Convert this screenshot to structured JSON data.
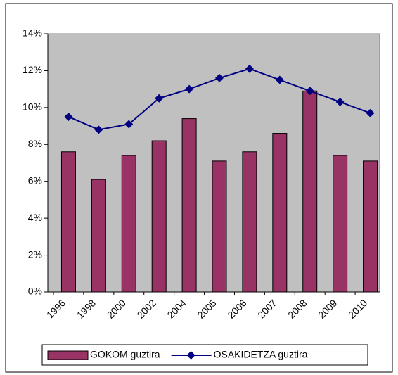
{
  "chart_data": {
    "type": "bar_line",
    "categories": [
      "1996",
      "1998",
      "2000",
      "2002",
      "2004",
      "2005",
      "2006",
      "2007",
      "2008",
      "2009",
      "2010"
    ],
    "series": [
      {
        "name": "GOKOM guztira",
        "type": "bar",
        "color": "#993366",
        "values": [
          7.6,
          6.1,
          7.4,
          8.2,
          9.4,
          7.1,
          7.6,
          8.6,
          10.9,
          7.4,
          7.1
        ]
      },
      {
        "name": "OSAKIDETZA guztira",
        "type": "line",
        "color": "#000080",
        "values": [
          9.5,
          8.8,
          9.1,
          10.5,
          11.0,
          11.6,
          12.1,
          11.5,
          10.9,
          10.3,
          9.7
        ]
      }
    ],
    "ylim": [
      0,
      14
    ],
    "yticks": [
      {
        "value": 0,
        "label": "0%"
      },
      {
        "value": 2,
        "label": "2%"
      },
      {
        "value": 4,
        "label": "4%"
      },
      {
        "value": 6,
        "label": "6%"
      },
      {
        "value": 8,
        "label": "8%"
      },
      {
        "value": 10,
        "label": "10%"
      },
      {
        "value": 12,
        "label": "12%"
      },
      {
        "value": 14,
        "label": "14%"
      }
    ],
    "legend": "bottom"
  }
}
